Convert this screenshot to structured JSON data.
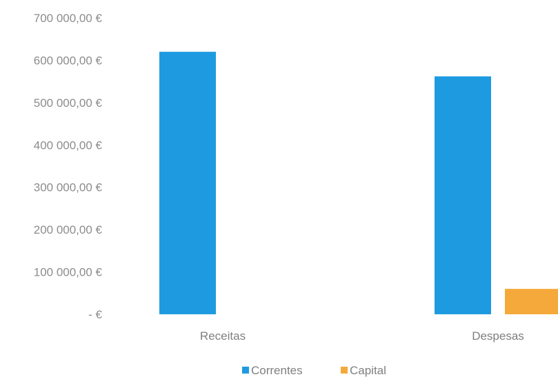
{
  "chart_data": {
    "type": "bar",
    "title": "",
    "xlabel": "",
    "ylabel": "",
    "categories": [
      "Receitas",
      "Despesas"
    ],
    "series": [
      {
        "name": "Correntes",
        "color": "#1e9be0",
        "values": [
          620000,
          562000
        ]
      },
      {
        "name": "Capital",
        "color": "#f5a93a",
        "values": [
          0,
          60000
        ]
      }
    ],
    "ylim": [
      0,
      700000
    ],
    "y_ticks": [
      {
        "value": 700000,
        "label": "700 000,00 €"
      },
      {
        "value": 600000,
        "label": "600 000,00 €"
      },
      {
        "value": 500000,
        "label": "500 000,00 €"
      },
      {
        "value": 400000,
        "label": "400 000,00 €"
      },
      {
        "value": 300000,
        "label": "300 000,00 €"
      },
      {
        "value": 200000,
        "label": "200 000,00 €"
      },
      {
        "value": 100000,
        "label": "100 000,00 €"
      },
      {
        "value": 0,
        "label": "-   €"
      }
    ],
    "grid": false,
    "legend_position": "bottom"
  }
}
